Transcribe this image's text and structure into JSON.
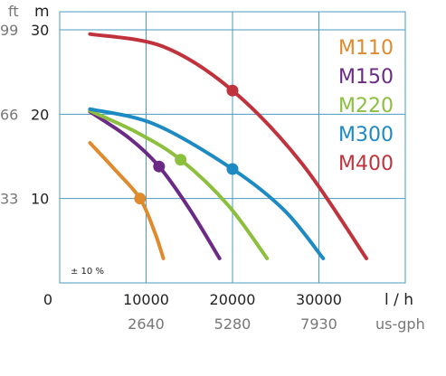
{
  "chart_data": {
    "type": "line",
    "x_unit": "l / h",
    "x2_unit": "us-gph",
    "y_unit_left": "ft",
    "y_unit_right": "m",
    "xlim": [
      0,
      40000
    ],
    "ylim": [
      0,
      30
    ],
    "x_ticks": [
      {
        "label": "0",
        "value": 0
      },
      {
        "label": "10000",
        "value": 10000
      },
      {
        "label": "20000",
        "value": 20000
      },
      {
        "label": "30000",
        "value": 30000
      }
    ],
    "x2_ticks": [
      {
        "label": "2640",
        "value": 10000
      },
      {
        "label": "5280",
        "value": 20000
      },
      {
        "label": "7930",
        "value": 30000
      }
    ],
    "y_ticks_m": [
      {
        "label": "10",
        "value": 10
      },
      {
        "label": "20",
        "value": 20
      },
      {
        "label": "30",
        "value": 30
      }
    ],
    "y_ticks_ft": [
      {
        "label": "33",
        "value": 10
      },
      {
        "label": "66",
        "value": 20
      },
      {
        "label": "99",
        "value": 30
      }
    ],
    "note": "± 10 %",
    "grid": true,
    "legend_position": "top-right",
    "series": [
      {
        "name": "M110",
        "color": "#e08a2e",
        "points": [
          [
            3500,
            16.6
          ],
          [
            6500,
            13.3
          ],
          [
            9300,
            10.0
          ],
          [
            11000,
            6.0
          ],
          [
            12000,
            2.9
          ]
        ],
        "marker": [
          9300,
          10.0
        ]
      },
      {
        "name": "M150",
        "color": "#6a2a86",
        "points": [
          [
            3500,
            20.3
          ],
          [
            8000,
            17.2
          ],
          [
            11500,
            13.8
          ],
          [
            15000,
            8.8
          ],
          [
            18500,
            2.9
          ]
        ],
        "marker": [
          11500,
          13.8
        ]
      },
      {
        "name": "M220",
        "color": "#8dbf3e",
        "points": [
          [
            3500,
            20.4
          ],
          [
            9000,
            17.8
          ],
          [
            14000,
            14.6
          ],
          [
            19500,
            9.2
          ],
          [
            24000,
            2.9
          ]
        ],
        "marker": [
          14000,
          14.6
        ]
      },
      {
        "name": "M300",
        "color": "#1d8ac4",
        "points": [
          [
            3500,
            20.6
          ],
          [
            11000,
            18.8
          ],
          [
            20000,
            13.5
          ],
          [
            26000,
            8.6
          ],
          [
            30500,
            2.9
          ]
        ],
        "marker": [
          20000,
          13.5
        ]
      },
      {
        "name": "M400",
        "color": "#c0333d",
        "points": [
          [
            3500,
            29.5
          ],
          [
            12000,
            28.0
          ],
          [
            20000,
            22.8
          ],
          [
            28000,
            14.2
          ],
          [
            35500,
            2.9
          ]
        ],
        "marker": [
          20000,
          22.8
        ]
      }
    ]
  }
}
